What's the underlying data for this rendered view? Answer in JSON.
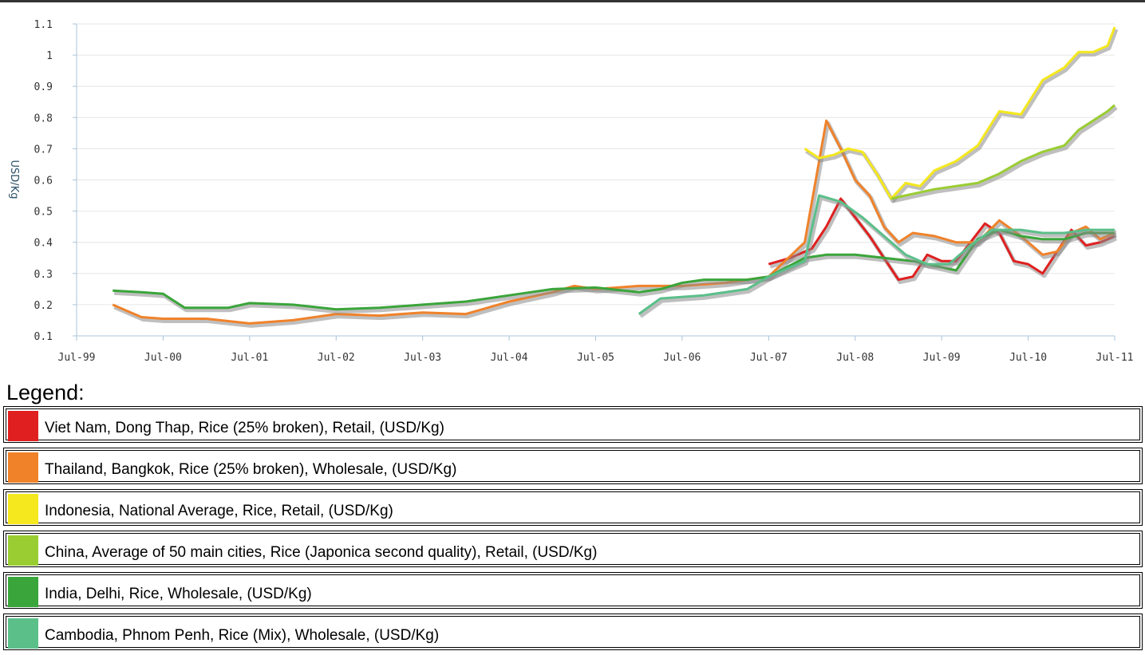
{
  "chart_data": {
    "type": "line",
    "title": "",
    "xlabel": "",
    "ylabel": "USD/Kg",
    "ylim": [
      0.1,
      1.1
    ],
    "yticks": [
      "0.1",
      "0.2",
      "0.3",
      "0.4",
      "0.5",
      "0.6",
      "0.7",
      "0.8",
      "0.9",
      "1",
      "1.1"
    ],
    "xticks": [
      "Jul-99",
      "Jul-00",
      "Jul-01",
      "Jul-02",
      "Jul-03",
      "Jul-04",
      "Jul-05",
      "Jul-06",
      "Jul-07",
      "Jul-08",
      "Jul-09",
      "Jul-10",
      "Jul-11"
    ],
    "xlim": [
      "1999-07",
      "2011-07"
    ],
    "grid": true,
    "series": [
      {
        "name": "Viet Nam, Dong Thap, Rice (25% broken), Retail, (USD/Kg)",
        "color": "#e02020",
        "points": [
          [
            "2007-07",
            0.33
          ],
          [
            "2007-10",
            0.35
          ],
          [
            "2008-01",
            0.38
          ],
          [
            "2008-03",
            0.45
          ],
          [
            "2008-05",
            0.54
          ],
          [
            "2008-07",
            0.48
          ],
          [
            "2008-09",
            0.42
          ],
          [
            "2008-11",
            0.35
          ],
          [
            "2009-01",
            0.28
          ],
          [
            "2009-03",
            0.29
          ],
          [
            "2009-05",
            0.36
          ],
          [
            "2009-07",
            0.34
          ],
          [
            "2009-09",
            0.34
          ],
          [
            "2009-11",
            0.4
          ],
          [
            "2010-01",
            0.46
          ],
          [
            "2010-03",
            0.43
          ],
          [
            "2010-05",
            0.34
          ],
          [
            "2010-07",
            0.33
          ],
          [
            "2010-09",
            0.3
          ],
          [
            "2010-11",
            0.37
          ],
          [
            "2011-01",
            0.44
          ],
          [
            "2011-03",
            0.39
          ],
          [
            "2011-05",
            0.4
          ],
          [
            "2011-07",
            0.42
          ]
        ]
      },
      {
        "name": "Thailand, Bangkok, Rice (25% broken), Wholesale, (USD/Kg)",
        "color": "#f0822a",
        "points": [
          [
            "1999-12",
            0.2
          ],
          [
            "2000-04",
            0.16
          ],
          [
            "2000-07",
            0.155
          ],
          [
            "2001-01",
            0.155
          ],
          [
            "2001-07",
            0.14
          ],
          [
            "2002-01",
            0.15
          ],
          [
            "2002-07",
            0.17
          ],
          [
            "2003-01",
            0.165
          ],
          [
            "2003-07",
            0.175
          ],
          [
            "2004-01",
            0.17
          ],
          [
            "2004-07",
            0.21
          ],
          [
            "2005-01",
            0.24
          ],
          [
            "2005-04",
            0.26
          ],
          [
            "2005-07",
            0.25
          ],
          [
            "2006-01",
            0.26
          ],
          [
            "2006-07",
            0.26
          ],
          [
            "2007-01",
            0.27
          ],
          [
            "2007-07",
            0.29
          ],
          [
            "2007-12",
            0.4
          ],
          [
            "2008-03",
            0.79
          ],
          [
            "2008-05",
            0.7
          ],
          [
            "2008-07",
            0.6
          ],
          [
            "2008-09",
            0.55
          ],
          [
            "2008-11",
            0.45
          ],
          [
            "2009-01",
            0.4
          ],
          [
            "2009-03",
            0.43
          ],
          [
            "2009-06",
            0.42
          ],
          [
            "2009-09",
            0.4
          ],
          [
            "2009-12",
            0.4
          ],
          [
            "2010-03",
            0.47
          ],
          [
            "2010-06",
            0.42
          ],
          [
            "2010-09",
            0.36
          ],
          [
            "2010-11",
            0.37
          ],
          [
            "2011-01",
            0.43
          ],
          [
            "2011-03",
            0.45
          ],
          [
            "2011-05",
            0.41
          ],
          [
            "2011-07",
            0.43
          ]
        ]
      },
      {
        "name": "Indonesia, National Average, Rice, Retail, (USD/Kg)",
        "color": "#f5e81e",
        "points": [
          [
            "2007-12",
            0.7
          ],
          [
            "2008-02",
            0.67
          ],
          [
            "2008-04",
            0.68
          ],
          [
            "2008-06",
            0.7
          ],
          [
            "2008-08",
            0.69
          ],
          [
            "2008-10",
            0.62
          ],
          [
            "2008-12",
            0.54
          ],
          [
            "2009-02",
            0.59
          ],
          [
            "2009-04",
            0.58
          ],
          [
            "2009-06",
            0.63
          ],
          [
            "2009-09",
            0.66
          ],
          [
            "2009-12",
            0.71
          ],
          [
            "2010-03",
            0.82
          ],
          [
            "2010-06",
            0.81
          ],
          [
            "2010-09",
            0.92
          ],
          [
            "2010-12",
            0.96
          ],
          [
            "2011-02",
            1.01
          ],
          [
            "2011-04",
            1.01
          ],
          [
            "2011-06",
            1.03
          ],
          [
            "2011-07",
            1.09
          ]
        ]
      },
      {
        "name": "China, Average of 50 main cities, Rice (Japonica second quality), Retail, (USD/Kg)",
        "color": "#9acd32",
        "points": [
          [
            "2008-12",
            0.54
          ],
          [
            "2009-02",
            0.55
          ],
          [
            "2009-06",
            0.57
          ],
          [
            "2009-12",
            0.59
          ],
          [
            "2010-03",
            0.62
          ],
          [
            "2010-06",
            0.66
          ],
          [
            "2010-09",
            0.69
          ],
          [
            "2010-12",
            0.71
          ],
          [
            "2011-02",
            0.76
          ],
          [
            "2011-04",
            0.79
          ],
          [
            "2011-06",
            0.82
          ],
          [
            "2011-07",
            0.84
          ]
        ]
      },
      {
        "name": "India, Delhi, Rice, Wholesale, (USD/Kg)",
        "color": "#3aa53a",
        "points": [
          [
            "1999-12",
            0.245
          ],
          [
            "2000-04",
            0.24
          ],
          [
            "2000-07",
            0.235
          ],
          [
            "2000-10",
            0.19
          ],
          [
            "2001-04",
            0.19
          ],
          [
            "2001-07",
            0.205
          ],
          [
            "2002-01",
            0.2
          ],
          [
            "2002-07",
            0.185
          ],
          [
            "2003-01",
            0.19
          ],
          [
            "2003-07",
            0.2
          ],
          [
            "2004-01",
            0.21
          ],
          [
            "2004-07",
            0.23
          ],
          [
            "2005-01",
            0.25
          ],
          [
            "2005-07",
            0.255
          ],
          [
            "2006-01",
            0.24
          ],
          [
            "2006-04",
            0.25
          ],
          [
            "2006-07",
            0.27
          ],
          [
            "2006-10",
            0.28
          ],
          [
            "2007-04",
            0.28
          ],
          [
            "2007-07",
            0.29
          ],
          [
            "2007-12",
            0.35
          ],
          [
            "2008-03",
            0.36
          ],
          [
            "2008-07",
            0.36
          ],
          [
            "2008-11",
            0.35
          ],
          [
            "2009-03",
            0.34
          ],
          [
            "2009-07",
            0.32
          ],
          [
            "2009-09",
            0.31
          ],
          [
            "2009-12",
            0.41
          ],
          [
            "2010-03",
            0.44
          ],
          [
            "2010-06",
            0.42
          ],
          [
            "2010-09",
            0.41
          ],
          [
            "2010-12",
            0.41
          ],
          [
            "2011-03",
            0.43
          ],
          [
            "2011-07",
            0.43
          ]
        ]
      },
      {
        "name": "Cambodia, Phnom Penh, Rice (Mix), Wholesale, (USD/Kg)",
        "color": "#5bbf8a",
        "points": [
          [
            "2006-01",
            0.17
          ],
          [
            "2006-04",
            0.22
          ],
          [
            "2006-10",
            0.23
          ],
          [
            "2007-04",
            0.25
          ],
          [
            "2007-07",
            0.29
          ],
          [
            "2007-12",
            0.34
          ],
          [
            "2008-02",
            0.55
          ],
          [
            "2008-05",
            0.53
          ],
          [
            "2008-08",
            0.48
          ],
          [
            "2008-11",
            0.42
          ],
          [
            "2009-02",
            0.36
          ],
          [
            "2009-05",
            0.33
          ],
          [
            "2009-08",
            0.33
          ],
          [
            "2009-11",
            0.39
          ],
          [
            "2010-02",
            0.44
          ],
          [
            "2010-06",
            0.44
          ],
          [
            "2010-09",
            0.43
          ],
          [
            "2010-12",
            0.43
          ],
          [
            "2011-03",
            0.44
          ],
          [
            "2011-07",
            0.44
          ]
        ]
      }
    ],
    "legend_title": "Legend:",
    "legend_position": "bottom"
  }
}
